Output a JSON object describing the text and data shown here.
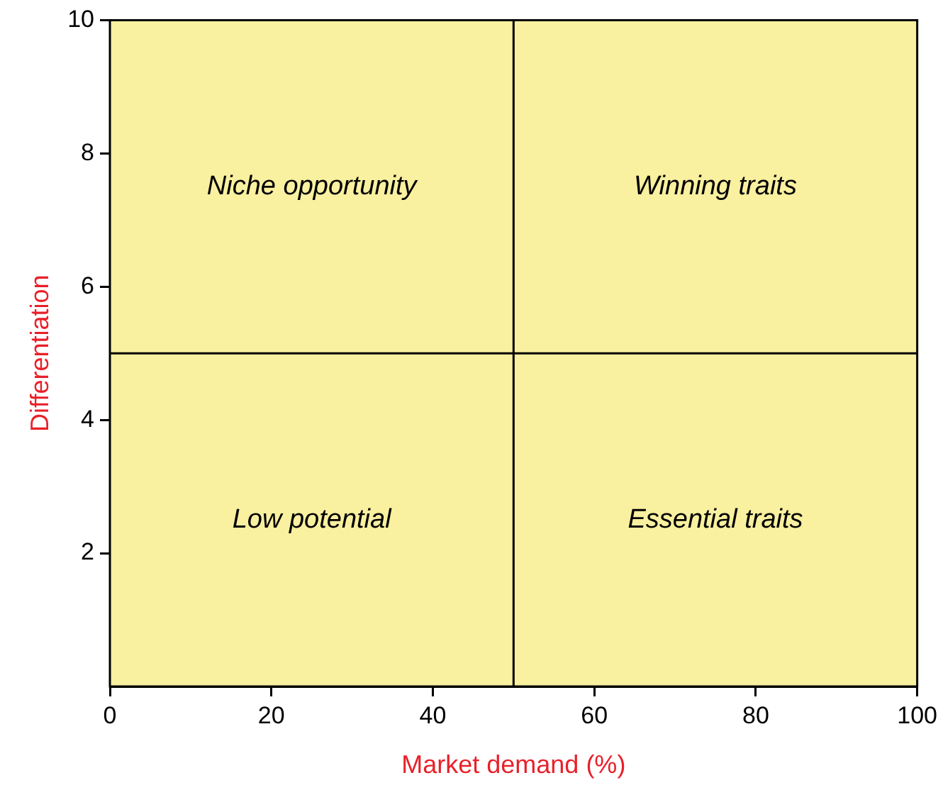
{
  "chart_data": {
    "type": "scatter",
    "xlabel": "Market demand (%)",
    "ylabel": "Differentiation",
    "xlim": [
      0,
      100
    ],
    "xticks": [
      0,
      20,
      40,
      60,
      80,
      100
    ],
    "ylim": [
      0,
      10
    ],
    "yticks": [
      2,
      4,
      6,
      8,
      10
    ],
    "legend": false,
    "bands": [
      {
        "axis": "x",
        "from": 0,
        "to": 100,
        "color": "#f9f0a0"
      }
    ],
    "ref_lines": [
      {
        "axis": "x",
        "value": 50
      },
      {
        "axis": "y",
        "value": 5
      }
    ],
    "annotations": [
      "Niche opportunity",
      "Winning traits",
      "Low potential",
      "Essential traits"
    ]
  }
}
